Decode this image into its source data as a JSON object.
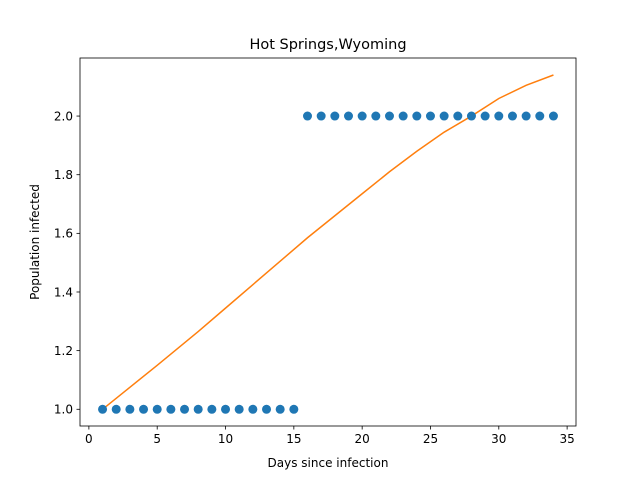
{
  "chart_data": {
    "type": "scatter",
    "title": "Hot Springs,Wyoming",
    "xlabel": "Days since infection",
    "ylabel": "Population infected",
    "xlim": [
      -0.65,
      35.65
    ],
    "ylim": [
      0.943,
      2.198
    ],
    "xticks": [
      0,
      5,
      10,
      15,
      20,
      25,
      30,
      35
    ],
    "yticks": [
      1.0,
      1.2,
      1.4,
      1.6,
      1.8,
      2.0
    ],
    "ytick_labels": [
      "1.0",
      "1.2",
      "1.4",
      "1.6",
      "1.8",
      "2.0"
    ],
    "grid": false,
    "legend": "none",
    "series": [
      {
        "kind": "scatter",
        "color": "#1f77b4",
        "x": [
          1,
          2,
          3,
          4,
          5,
          6,
          7,
          8,
          9,
          10,
          11,
          12,
          13,
          14,
          15,
          16,
          17,
          18,
          19,
          20,
          21,
          22,
          23,
          24,
          25,
          26,
          27,
          28,
          29,
          30,
          31,
          32,
          33,
          34
        ],
        "y": [
          1,
          1,
          1,
          1,
          1,
          1,
          1,
          1,
          1,
          1,
          1,
          1,
          1,
          1,
          1,
          2,
          2,
          2,
          2,
          2,
          2,
          2,
          2,
          2,
          2,
          2,
          2,
          2,
          2,
          2,
          2,
          2,
          2,
          2
        ]
      },
      {
        "kind": "line",
        "color": "#ff7f0e",
        "x": [
          1,
          3,
          5,
          8,
          10,
          12,
          14,
          16,
          18,
          20,
          22,
          24,
          26,
          28,
          30,
          32,
          34
        ],
        "y": [
          1.0,
          1.075,
          1.15,
          1.265,
          1.345,
          1.425,
          1.505,
          1.585,
          1.66,
          1.735,
          1.81,
          1.88,
          1.945,
          2.0,
          2.06,
          2.105,
          2.14
        ]
      }
    ]
  }
}
